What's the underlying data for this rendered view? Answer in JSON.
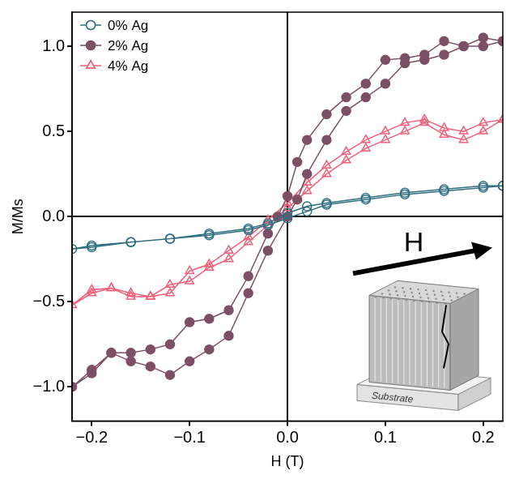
{
  "chart_data": {
    "type": "scatter",
    "x_label": "H (T)",
    "y_label": "M/Ms",
    "xlim": [
      -0.22,
      0.22
    ],
    "ylim": [
      -1.2,
      1.2
    ],
    "xticks": [
      {
        "value": -0.2,
        "label": "−0.2"
      },
      {
        "value": -0.1,
        "label": "−0.1"
      },
      {
        "value": 0,
        "label": "0.0"
      },
      {
        "value": 0.1,
        "label": "0.1"
      },
      {
        "value": 0.2,
        "label": "0.2"
      }
    ],
    "yticks": [
      {
        "value": -1,
        "label": "−1.0"
      },
      {
        "value": -0.5,
        "label": "−0.5"
      },
      {
        "value": 0,
        "label": "0.0"
      },
      {
        "value": 0.5,
        "label": "0.5"
      },
      {
        "value": 1,
        "label": "1.0"
      }
    ],
    "grid": false,
    "legend": "upper left",
    "annotations": [
      "H",
      "Substrate"
    ],
    "series": [
      {
        "name": "0% Ag",
        "color": "#2e6f80",
        "marker": "circle-open",
        "line_style": "solid",
        "x": [
          0.22,
          0.2,
          0.16,
          0.12,
          0.08,
          0.04,
          0.02,
          0,
          -0.02,
          -0.04,
          -0.08,
          -0.12,
          -0.16,
          -0.2,
          -0.22,
          -0.2,
          -0.16,
          -0.12,
          -0.08,
          -0.04,
          -0.02,
          0,
          0.02,
          0.04,
          0.08,
          0.12,
          0.16,
          0.2,
          0.22
        ],
        "values": [
          0.18,
          0.18,
          0.16,
          0.14,
          0.11,
          0.08,
          0.06,
          0.02,
          -0.04,
          -0.07,
          -0.1,
          -0.13,
          -0.15,
          -0.18,
          -0.19,
          -0.17,
          -0.15,
          -0.13,
          -0.11,
          -0.08,
          -0.05,
          -0.01,
          0.03,
          0.07,
          0.1,
          0.13,
          0.15,
          0.17,
          0.18
        ]
      },
      {
        "name": "2% Ag",
        "color": "#7d4f65",
        "marker": "circle",
        "line_style": "solid",
        "x": [
          0.22,
          0.2,
          0.18,
          0.16,
          0.14,
          0.12,
          0.1,
          0.08,
          0.06,
          0.04,
          0.02,
          0.01,
          0,
          -0.01,
          -0.02,
          -0.04,
          -0.06,
          -0.08,
          -0.1,
          -0.12,
          -0.14,
          -0.16,
          -0.18,
          -0.2,
          -0.22,
          -0.2,
          -0.18,
          -0.16,
          -0.14,
          -0.12,
          -0.1,
          -0.08,
          -0.06,
          -0.04,
          -0.02,
          0,
          0.01,
          0.02,
          0.04,
          0.06,
          0.08,
          0.1,
          0.12,
          0.14,
          0.16,
          0.18,
          0.2,
          0.22
        ],
        "values": [
          1.03,
          1.05,
          1.0,
          1.03,
          0.95,
          0.93,
          0.92,
          0.78,
          0.7,
          0.6,
          0.45,
          0.32,
          0.12,
          0.0,
          -0.1,
          -0.35,
          -0.55,
          -0.6,
          -0.62,
          -0.75,
          -0.78,
          -0.8,
          -0.8,
          -0.92,
          -1.0,
          -0.9,
          -0.8,
          -0.85,
          -0.88,
          -0.93,
          -0.85,
          -0.78,
          -0.7,
          -0.45,
          -0.2,
          0.0,
          0.1,
          0.25,
          0.45,
          0.62,
          0.7,
          0.78,
          0.9,
          0.92,
          0.95,
          1.0,
          1.0,
          1.03
        ]
      },
      {
        "name": "4% Ag",
        "color": "#f0607a",
        "marker": "triangle-open",
        "line_style": "solid",
        "x": [
          0.22,
          0.2,
          0.18,
          0.16,
          0.14,
          0.12,
          0.1,
          0.08,
          0.06,
          0.04,
          0.02,
          0,
          -0.02,
          -0.04,
          -0.06,
          -0.08,
          -0.1,
          -0.12,
          -0.14,
          -0.16,
          -0.18,
          -0.2,
          -0.22,
          -0.2,
          -0.18,
          -0.16,
          -0.14,
          -0.12,
          -0.1,
          -0.08,
          -0.06,
          -0.04,
          -0.02,
          0,
          0.02,
          0.04,
          0.06,
          0.08,
          0.1,
          0.12,
          0.14,
          0.16,
          0.18,
          0.2,
          0.22
        ],
        "values": [
          0.57,
          0.5,
          0.45,
          0.48,
          0.55,
          0.5,
          0.45,
          0.4,
          0.33,
          0.25,
          0.15,
          0.05,
          -0.05,
          -0.15,
          -0.25,
          -0.3,
          -0.38,
          -0.4,
          -0.47,
          -0.45,
          -0.42,
          -0.45,
          -0.52,
          -0.43,
          -0.42,
          -0.47,
          -0.47,
          -0.45,
          -0.32,
          -0.28,
          -0.2,
          -0.12,
          -0.02,
          0.08,
          0.2,
          0.3,
          0.38,
          0.45,
          0.5,
          0.55,
          0.57,
          0.52,
          0.5,
          0.55,
          0.57
        ]
      }
    ]
  }
}
